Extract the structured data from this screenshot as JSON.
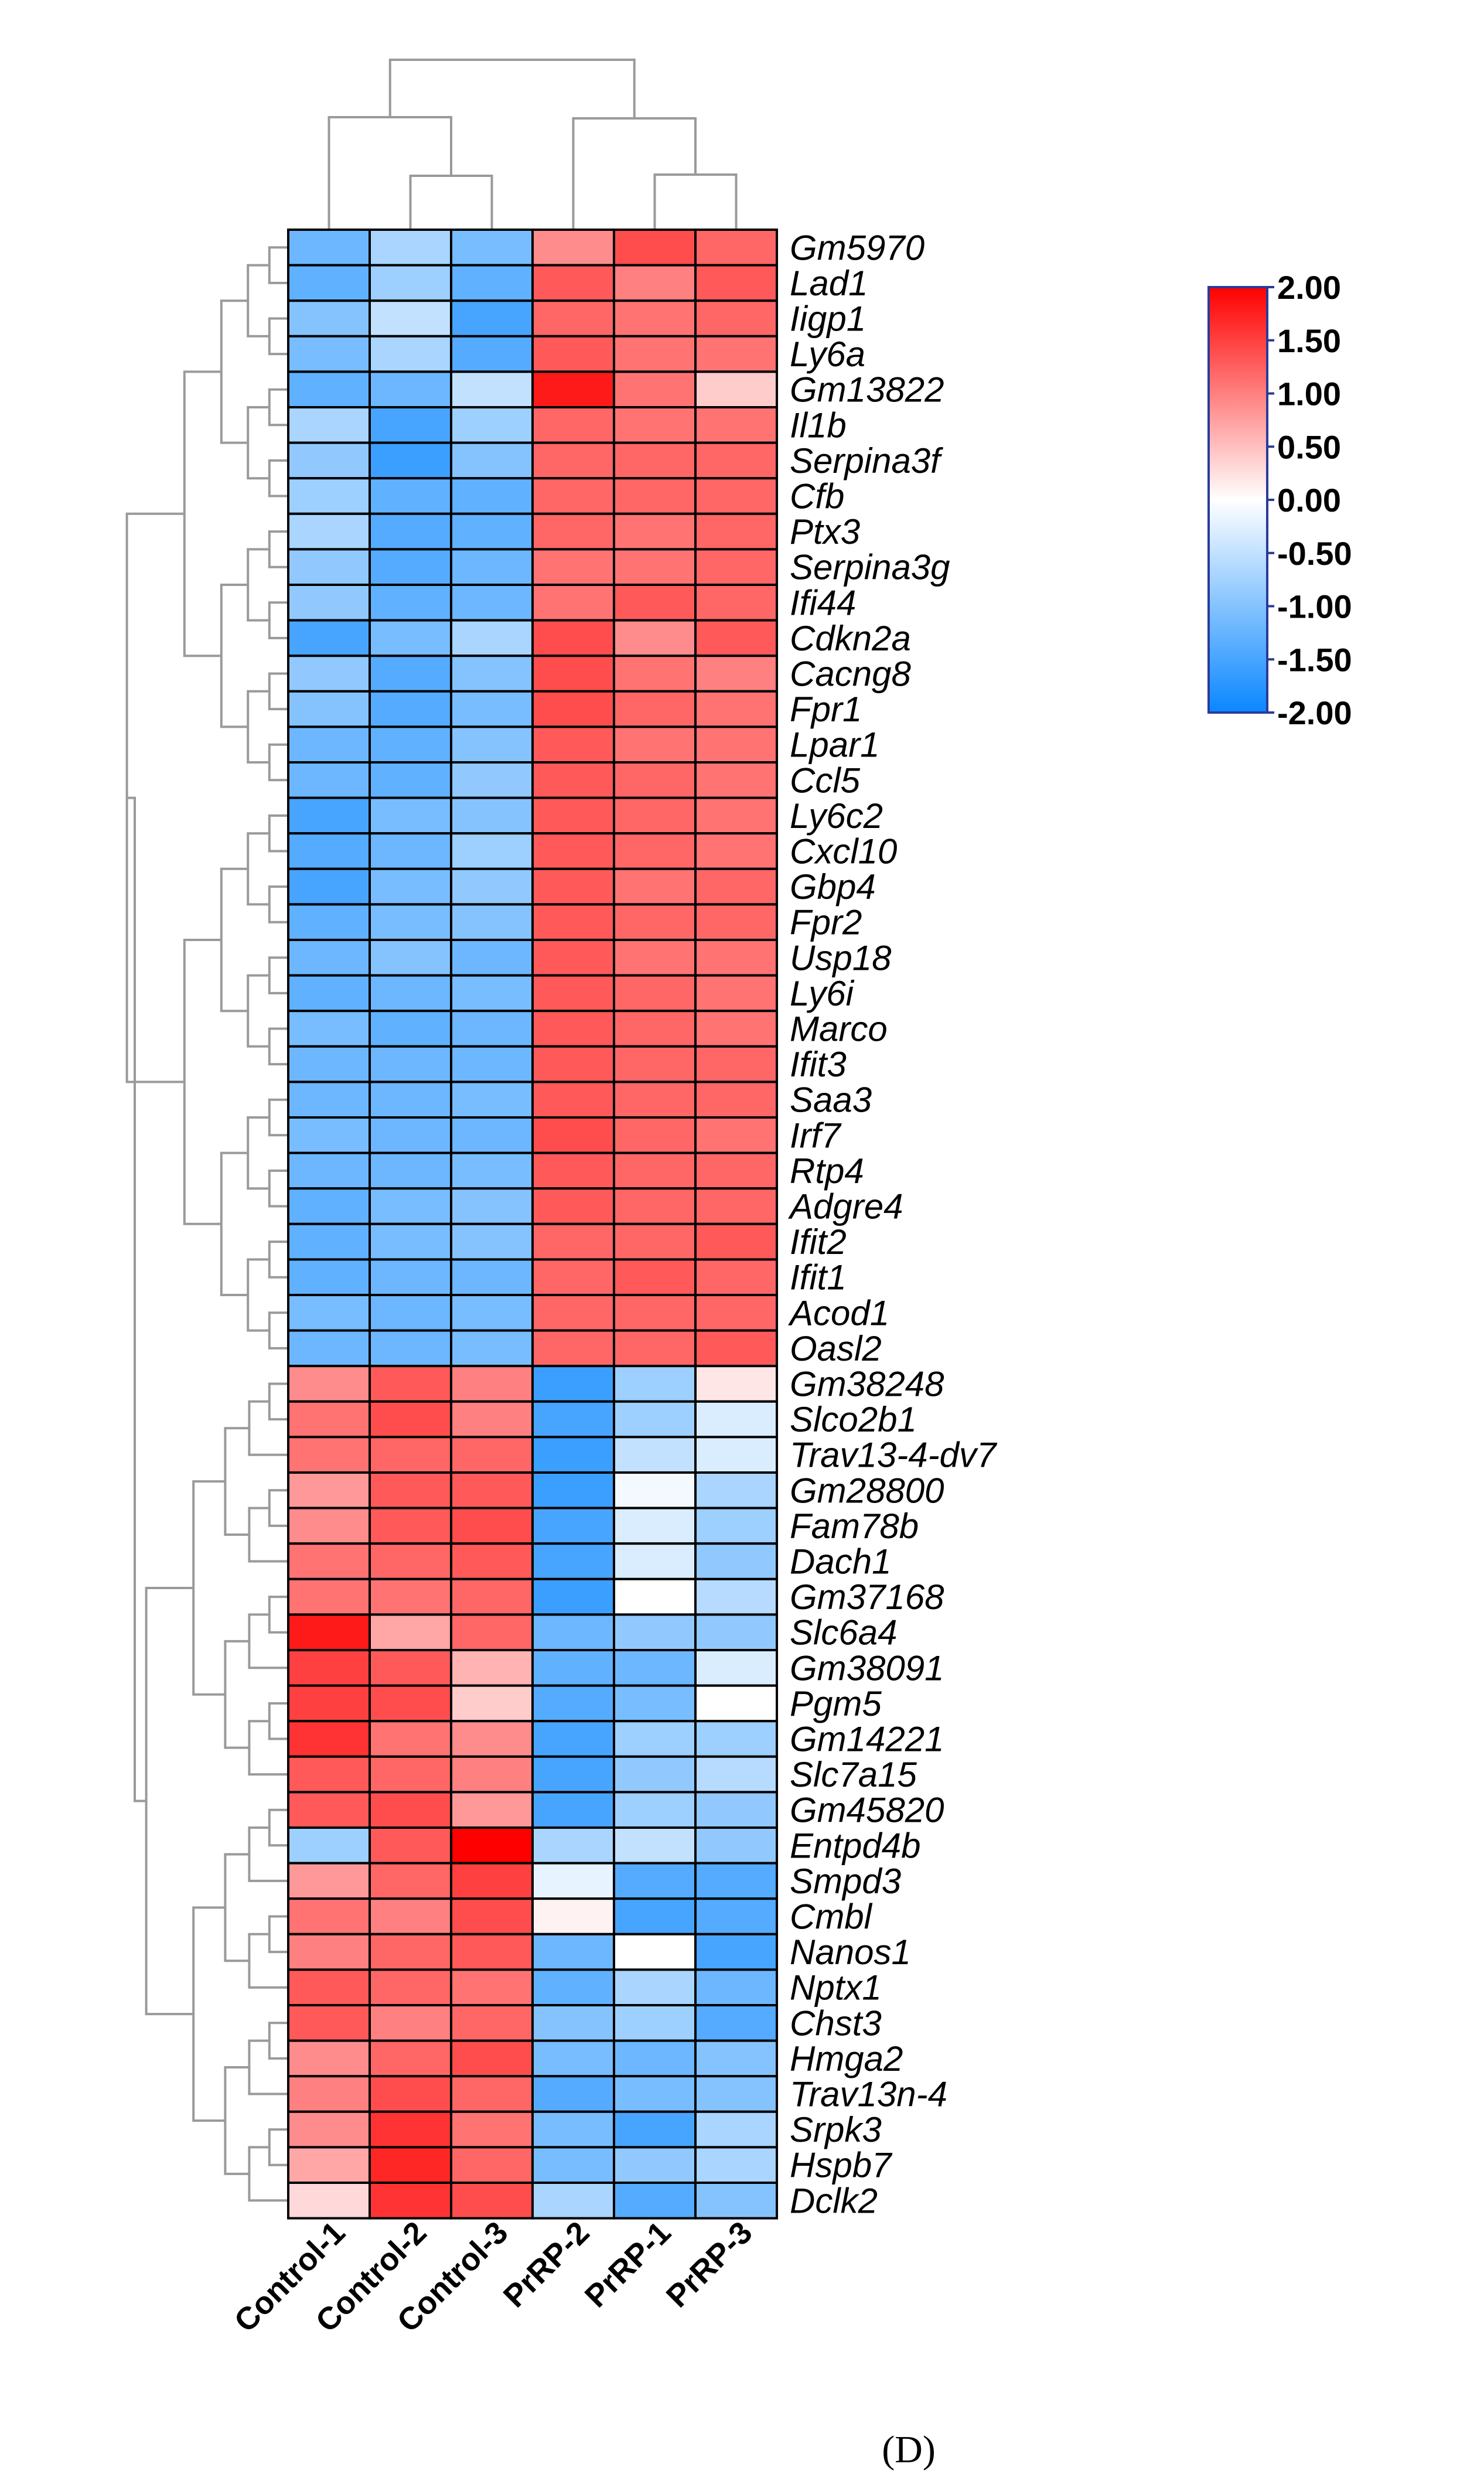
{
  "panel_label": "(D)",
  "chart_data": {
    "type": "heatmap",
    "title": "",
    "columns": [
      "Control-1",
      "Control-2",
      "Control-3",
      "PrRP-2",
      "PrRP-1",
      "PrRP-3"
    ],
    "rows": [
      "Gm5970",
      "Lad1",
      "Iigp1",
      "Ly6a",
      "Gm13822",
      "Il1b",
      "Serpina3f",
      "Cfb",
      "Ptx3",
      "Serpina3g",
      "Ifi44",
      "Cdkn2a",
      "Cacng8",
      "Fpr1",
      "Lpar1",
      "Ccl5",
      "Ly6c2",
      "Cxcl10",
      "Gbp4",
      "Fpr2",
      "Usp18",
      "Ly6i",
      "Marco",
      "Ifit3",
      "Saa3",
      "Irf7",
      "Rtp4",
      "Adgre4",
      "Ifit2",
      "Ifit1",
      "Acod1",
      "Oasl2",
      "Gm38248",
      "Slco2b1",
      "Trav13-4-dv7",
      "Gm28800",
      "Fam78b",
      "Dach1",
      "Gm37168",
      "Slc6a4",
      "Gm38091",
      "Pgm5",
      "Gm14221",
      "Slc7a15",
      "Gm45820",
      "Entpd4b",
      "Smpd3",
      "Cmbl",
      "Nanos1",
      "Nptx1",
      "Chst3",
      "Hmga2",
      "Trav13n-4",
      "Srpk3",
      "Hspb7",
      "Dclk2"
    ],
    "values": [
      [
        -1.2,
        -0.7,
        -1.1,
        0.9,
        1.4,
        1.2
      ],
      [
        -1.3,
        -0.8,
        -1.3,
        1.3,
        1.0,
        1.3
      ],
      [
        -1.0,
        -0.5,
        -1.5,
        1.2,
        1.1,
        1.2
      ],
      [
        -1.1,
        -0.7,
        -1.4,
        1.3,
        1.1,
        1.1
      ],
      [
        -1.3,
        -1.2,
        -0.5,
        1.8,
        1.1,
        0.4
      ],
      [
        -0.7,
        -1.5,
        -0.8,
        1.2,
        1.1,
        1.1
      ],
      [
        -0.9,
        -1.6,
        -1.0,
        1.2,
        1.2,
        1.2
      ],
      [
        -0.8,
        -1.3,
        -1.3,
        1.2,
        1.2,
        1.2
      ],
      [
        -0.7,
        -1.4,
        -1.3,
        1.2,
        1.1,
        1.2
      ],
      [
        -0.9,
        -1.4,
        -1.2,
        1.1,
        1.1,
        1.2
      ],
      [
        -0.9,
        -1.3,
        -1.2,
        1.1,
        1.3,
        1.2
      ],
      [
        -1.5,
        -1.1,
        -0.7,
        1.4,
        0.9,
        1.3
      ],
      [
        -0.9,
        -1.4,
        -1.0,
        1.4,
        1.1,
        1.0
      ],
      [
        -1.0,
        -1.4,
        -1.1,
        1.4,
        1.2,
        1.1
      ],
      [
        -1.2,
        -1.3,
        -1.0,
        1.3,
        1.1,
        1.1
      ],
      [
        -1.2,
        -1.3,
        -0.9,
        1.3,
        1.2,
        1.1
      ],
      [
        -1.5,
        -1.1,
        -1.0,
        1.3,
        1.2,
        1.1
      ],
      [
        -1.4,
        -1.2,
        -0.8,
        1.3,
        1.2,
        1.1
      ],
      [
        -1.5,
        -1.1,
        -0.9,
        1.3,
        1.1,
        1.2
      ],
      [
        -1.3,
        -1.1,
        -1.0,
        1.3,
        1.2,
        1.2
      ],
      [
        -1.2,
        -1.0,
        -1.2,
        1.3,
        1.1,
        1.1
      ],
      [
        -1.3,
        -1.2,
        -1.1,
        1.3,
        1.2,
        1.1
      ],
      [
        -1.1,
        -1.3,
        -1.2,
        1.3,
        1.2,
        1.1
      ],
      [
        -1.2,
        -1.2,
        -1.2,
        1.3,
        1.2,
        1.2
      ],
      [
        -1.2,
        -1.2,
        -1.1,
        1.3,
        1.2,
        1.2
      ],
      [
        -1.1,
        -1.2,
        -1.2,
        1.4,
        1.2,
        1.1
      ],
      [
        -1.2,
        -1.2,
        -1.1,
        1.3,
        1.2,
        1.2
      ],
      [
        -1.3,
        -1.1,
        -1.0,
        1.3,
        1.2,
        1.2
      ],
      [
        -1.3,
        -1.1,
        -1.0,
        1.2,
        1.2,
        1.3
      ],
      [
        -1.3,
        -1.2,
        -1.2,
        1.2,
        1.3,
        1.2
      ],
      [
        -1.1,
        -1.2,
        -1.1,
        1.2,
        1.2,
        1.2
      ],
      [
        -1.2,
        -1.2,
        -1.1,
        1.2,
        1.2,
        1.3
      ],
      [
        0.9,
        1.3,
        1.0,
        -1.6,
        -0.8,
        0.2
      ],
      [
        1.1,
        1.4,
        1.0,
        -1.5,
        -0.8,
        -0.3
      ],
      [
        1.1,
        1.2,
        1.2,
        -1.6,
        -0.5,
        -0.3
      ],
      [
        0.8,
        1.3,
        1.3,
        -1.6,
        -0.1,
        -0.7
      ],
      [
        0.9,
        1.3,
        1.4,
        -1.5,
        -0.3,
        -0.8
      ],
      [
        1.1,
        1.2,
        1.3,
        -1.5,
        -0.3,
        -0.9
      ],
      [
        1.1,
        1.1,
        1.2,
        -1.6,
        0.0,
        -0.6
      ],
      [
        1.8,
        0.7,
        1.2,
        -1.2,
        -0.9,
        -0.9
      ],
      [
        1.5,
        1.3,
        0.6,
        -1.3,
        -1.2,
        -0.3
      ],
      [
        1.5,
        1.4,
        0.4,
        -1.4,
        -1.1,
        0.0
      ],
      [
        1.6,
        1.1,
        0.9,
        -1.5,
        -0.8,
        -0.8
      ],
      [
        1.3,
        1.2,
        1.0,
        -1.5,
        -0.9,
        -0.6
      ],
      [
        1.3,
        1.4,
        0.8,
        -1.5,
        -0.8,
        -0.9
      ],
      [
        -0.8,
        1.3,
        2.0,
        -0.7,
        -0.5,
        -0.9
      ],
      [
        0.8,
        1.2,
        1.5,
        -0.2,
        -1.4,
        -1.4
      ],
      [
        1.1,
        1.0,
        1.4,
        0.1,
        -1.5,
        -1.4
      ],
      [
        1.0,
        1.2,
        1.3,
        -1.2,
        0.0,
        -1.5
      ],
      [
        1.3,
        1.2,
        1.1,
        -1.3,
        -0.7,
        -1.2
      ],
      [
        1.3,
        1.0,
        1.2,
        -1.0,
        -0.8,
        -1.4
      ],
      [
        0.9,
        1.2,
        1.4,
        -1.1,
        -1.2,
        -1.0
      ],
      [
        1.0,
        1.4,
        1.2,
        -1.4,
        -1.1,
        -1.0
      ],
      [
        0.9,
        1.6,
        1.1,
        -1.1,
        -1.5,
        -0.7
      ],
      [
        0.7,
        1.7,
        1.2,
        -1.1,
        -0.9,
        -0.7
      ],
      [
        0.3,
        1.6,
        1.4,
        -0.7,
        -1.4,
        -1.0
      ]
    ],
    "colorbar": {
      "min": -2.0,
      "max": 2.0,
      "ticks": [
        "2.00",
        "1.50",
        "1.00",
        "0.50",
        "0.00",
        "-0.50",
        "-1.00",
        "-1.50",
        "-2.00"
      ],
      "colors": {
        "low": "#0a87ff",
        "mid": "#ffffff",
        "high": "#ff0000"
      }
    },
    "column_dendrogram": {
      "merges": [
        [
          "Control-2",
          "Control-3"
        ],
        [
          "Control-1",
          "Control-2+Control-3"
        ],
        [
          "PrRP-1",
          "PrRP-3"
        ],
        [
          "PrRP-2",
          "PrRP-1+PrRP-3"
        ],
        [
          "Control",
          "PrRP"
        ]
      ]
    },
    "row_dendrogram": {
      "clusters": [
        "up-regulated in PrRP (Gm5970 … Oasl2)",
        "down-regulated in PrRP (Gm38248 … Dclk2)"
      ]
    }
  }
}
